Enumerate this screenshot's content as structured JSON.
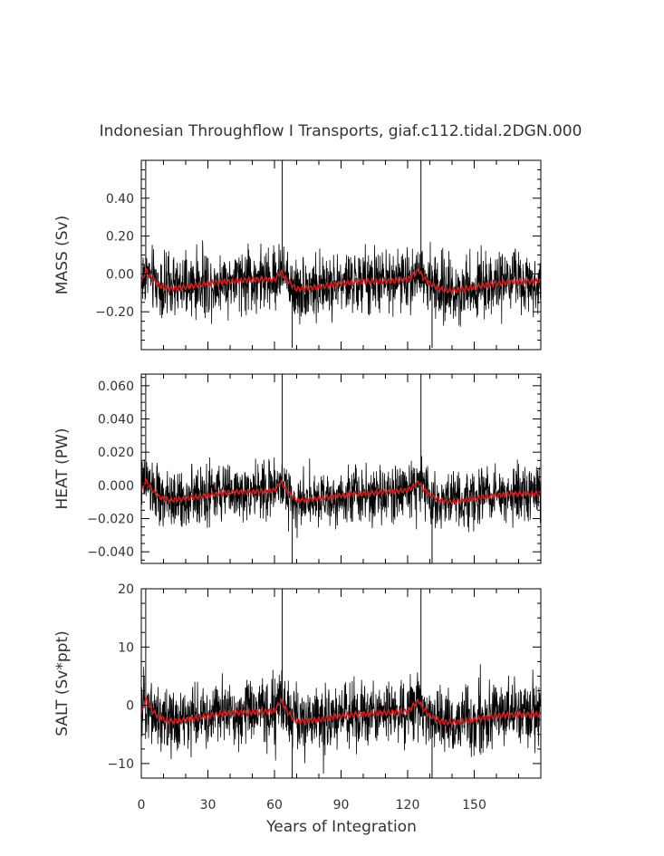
{
  "title": "Indonesian Throughflow I Transports, giaf.c112.tidal.2DGN.000",
  "xlabel": "Years of Integration",
  "colors": {
    "raw": "#000000",
    "smooth": "#cc1f1f",
    "frame": "#000000",
    "text": "#333333"
  },
  "chart_data": [
    {
      "type": "line",
      "name": "mass",
      "ylabel": "MASS (Sv)",
      "xlim": [
        0,
        180
      ],
      "ylim": [
        -0.4,
        0.6
      ],
      "yticks": [
        -0.2,
        0.0,
        0.2,
        0.4
      ],
      "ytick_labels": [
        "−0.20",
        "0.00",
        "0.20",
        "0.40"
      ],
      "xticks": [
        0,
        30,
        60,
        90,
        120,
        150
      ],
      "xtick_labels": [
        "0",
        "30",
        "60",
        "90",
        "120",
        "150"
      ],
      "baseline": -0.06,
      "amplitude": 0.12,
      "smooth": {
        "x": [
          0,
          2,
          5,
          8,
          12,
          20,
          30,
          40,
          50,
          60,
          63,
          66,
          70,
          80,
          90,
          100,
          110,
          120,
          125,
          127,
          130,
          135,
          140,
          150,
          160,
          170,
          179
        ],
        "y": [
          -0.05,
          0.02,
          -0.03,
          -0.06,
          -0.08,
          -0.07,
          -0.05,
          -0.04,
          -0.03,
          -0.03,
          0.01,
          -0.04,
          -0.08,
          -0.07,
          -0.05,
          -0.04,
          -0.04,
          -0.03,
          0.02,
          -0.02,
          -0.05,
          -0.08,
          -0.09,
          -0.07,
          -0.05,
          -0.04,
          -0.04
        ]
      },
      "spikes": [
        {
          "x": 2,
          "y": 0.6
        },
        {
          "x": 63.5,
          "y": 0.6
        },
        {
          "x": 126,
          "y": 0.6
        },
        {
          "x": 68,
          "y": -0.39
        },
        {
          "x": 131,
          "y": -0.39
        }
      ]
    },
    {
      "type": "line",
      "name": "heat",
      "ylabel": "HEAT (PW)",
      "xlim": [
        0,
        180
      ],
      "ylim": [
        -0.047,
        0.067
      ],
      "yticks": [
        -0.04,
        -0.02,
        0.0,
        0.02,
        0.04,
        0.06
      ],
      "ytick_labels": [
        "−0.040",
        "−0.020",
        "0.000",
        "0.020",
        "0.040",
        "0.060"
      ],
      "xticks": [
        0,
        30,
        60,
        90,
        120,
        150
      ],
      "xtick_labels": [
        "0",
        "30",
        "60",
        "90",
        "120",
        "150"
      ],
      "baseline": -0.006,
      "amplitude": 0.012,
      "smooth": {
        "x": [
          0,
          2,
          5,
          8,
          12,
          20,
          30,
          40,
          50,
          60,
          63,
          66,
          70,
          80,
          90,
          100,
          110,
          120,
          125,
          127,
          130,
          135,
          140,
          150,
          160,
          170,
          179
        ],
        "y": [
          -0.004,
          0.003,
          -0.003,
          -0.007,
          -0.009,
          -0.008,
          -0.006,
          -0.004,
          -0.004,
          -0.003,
          0.002,
          -0.004,
          -0.009,
          -0.008,
          -0.006,
          -0.005,
          -0.004,
          -0.003,
          0.002,
          -0.002,
          -0.006,
          -0.009,
          -0.01,
          -0.008,
          -0.006,
          -0.005,
          -0.005
        ]
      },
      "spikes": [
        {
          "x": 2,
          "y": 0.067
        },
        {
          "x": 63.5,
          "y": 0.067
        },
        {
          "x": 126,
          "y": 0.067
        },
        {
          "x": 68,
          "y": -0.047
        },
        {
          "x": 131,
          "y": -0.047
        }
      ]
    },
    {
      "type": "line",
      "name": "salt",
      "ylabel": "SALT (Sv*ppt)",
      "xlim": [
        0,
        180
      ],
      "ylim": [
        -12.5,
        20
      ],
      "yticks": [
        -10,
        0,
        10,
        20
      ],
      "ytick_labels": [
        "−10",
        "0",
        "10",
        "20"
      ],
      "xticks": [
        0,
        30,
        60,
        90,
        120,
        150
      ],
      "xtick_labels": [
        "0",
        "30",
        "60",
        "90",
        "120",
        "150"
      ],
      "baseline": -2.0,
      "amplitude": 4.0,
      "smooth": {
        "x": [
          0,
          2,
          5,
          8,
          12,
          20,
          30,
          40,
          50,
          60,
          63,
          66,
          70,
          80,
          90,
          100,
          110,
          120,
          125,
          127,
          130,
          135,
          140,
          150,
          160,
          170,
          179
        ],
        "y": [
          -1.5,
          1.0,
          -1.0,
          -2.0,
          -2.8,
          -2.5,
          -1.8,
          -1.3,
          -1.2,
          -1.0,
          0.8,
          -1.2,
          -2.8,
          -2.5,
          -1.8,
          -1.5,
          -1.3,
          -1.0,
          0.8,
          -0.6,
          -1.8,
          -2.8,
          -3.0,
          -2.5,
          -1.8,
          -1.6,
          -1.6
        ]
      },
      "spikes": [
        {
          "x": 2,
          "y": 20
        },
        {
          "x": 63.5,
          "y": 20
        },
        {
          "x": 126,
          "y": 20
        },
        {
          "x": 68,
          "y": -12.5
        },
        {
          "x": 131,
          "y": -12.5
        }
      ]
    }
  ]
}
